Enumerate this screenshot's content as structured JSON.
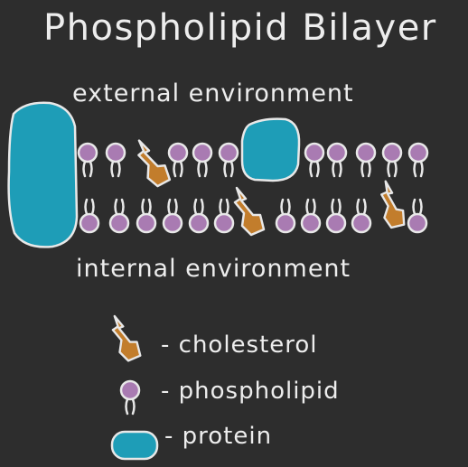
{
  "title": "Phospholipid Bilayer",
  "labels": {
    "external": "external environment",
    "internal": "internal environment"
  },
  "legend": {
    "cholesterol": "- cholesterol",
    "phospholipid": "- phospholipid",
    "protein": "- protein"
  },
  "colors": {
    "background": "#2d2d2d",
    "outline": "#e8e8e8",
    "phospholipid_head": "#a97bb2",
    "protein": "#1e9db7",
    "cholesterol": "#c27d2c"
  }
}
